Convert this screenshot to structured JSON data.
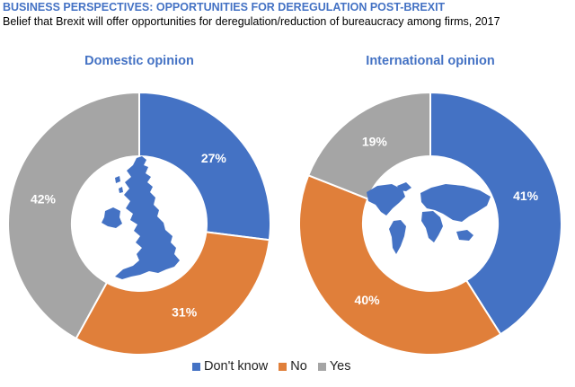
{
  "header": {
    "title": "BUSINESS PERSPECTIVES: OPPORTUNITIES FOR DEREGULATION POST-BREXIT",
    "subtitle": "Belief that Brexit will offer opportunities for deregulation/reduction of bureaucracy among firms, 2017"
  },
  "colors": {
    "dont_know": "#4472c4",
    "no": "#e07f3a",
    "yes": "#a5a5a5",
    "map": "#4472c4"
  },
  "chart_data": [
    {
      "type": "pie",
      "variant": "donut",
      "title": "Domestic opinion",
      "center_icon": "uk-map-icon",
      "categories": [
        "Don't know",
        "No",
        "Yes"
      ],
      "values": [
        27,
        31,
        42
      ],
      "labels": [
        "27%",
        "31%",
        "42%"
      ]
    },
    {
      "type": "pie",
      "variant": "donut",
      "title": "International opinion",
      "center_icon": "world-map-icon",
      "categories": [
        "Don't know",
        "No",
        "Yes"
      ],
      "values": [
        41,
        40,
        19
      ],
      "labels": [
        "41%",
        "40%",
        "19%"
      ]
    }
  ],
  "legend": {
    "position": "bottom",
    "items": [
      "Don't know",
      "No",
      "Yes"
    ]
  }
}
